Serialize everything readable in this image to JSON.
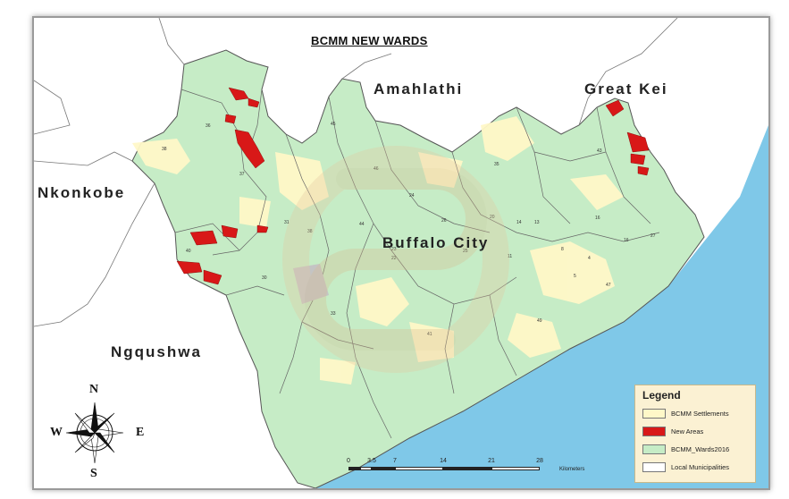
{
  "title": "BCMM NEW WARDS",
  "regions": {
    "amahlathi": "Amahlathi",
    "great_kei": "Great Kei",
    "nkonkobe": "Nkonkobe",
    "buffalo_city": "Buffalo City",
    "ngqushwa": "Ngqushwa"
  },
  "legend": {
    "title": "Legend",
    "items": [
      {
        "label": "BCMM Settlements",
        "color": "#fff8c8"
      },
      {
        "label": "New Areas",
        "color": "#d81818"
      },
      {
        "label": "BCMM_Wards2016",
        "color": "#c6ecc6"
      },
      {
        "label": "Local Municipalities",
        "color": "#ffffff"
      }
    ]
  },
  "scale_bar": {
    "ticks": [
      "0",
      "3.5",
      "7",
      "14",
      "21",
      "28"
    ],
    "unit": "Kilometers"
  },
  "compass": {
    "n": "N",
    "s": "S",
    "e": "E",
    "w": "W"
  },
  "colors": {
    "sea": "#7fc8e8",
    "wards": "#c6ecc6",
    "settlements": "#fff8c8",
    "new_areas": "#d81818",
    "boundary": "#555555"
  }
}
